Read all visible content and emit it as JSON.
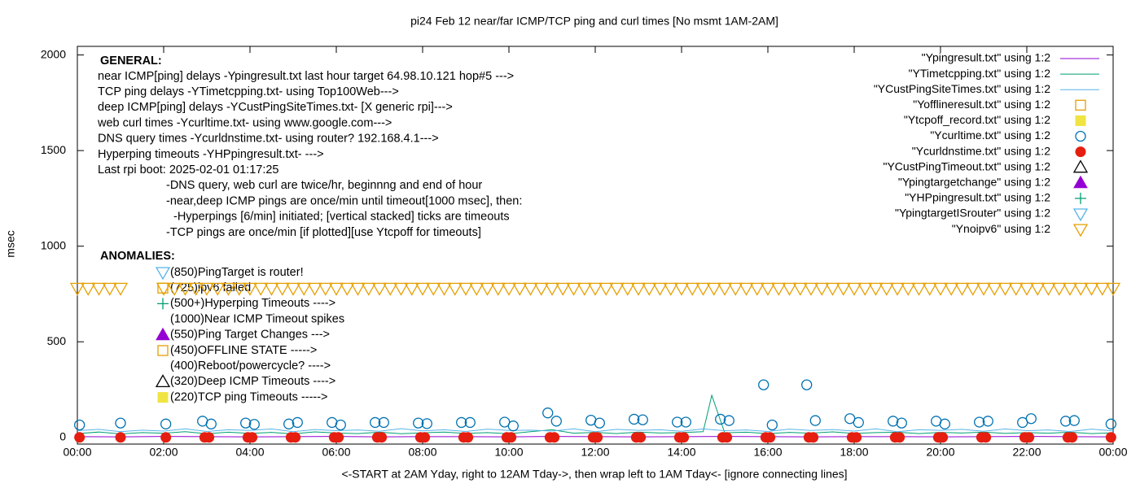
{
  "chart_data": {
    "type": "scatter",
    "title": "pi24 Feb 12  near/far ICMP/TCP ping and curl times [No msmt 1AM-2AM]",
    "ylabel": "msec",
    "xlabel": "<-START at 2AM Yday, right to 12AM Tday->, then wrap left to 1AM Tday<- [ignore connecting lines]",
    "xlim": [
      0,
      24
    ],
    "ylim": [
      -35,
      2045
    ],
    "yticks": [
      0,
      500,
      1000,
      1500,
      2000
    ],
    "xticks": [
      {
        "value": 0,
        "label": "00:00"
      },
      {
        "value": 2,
        "label": "02:00"
      },
      {
        "value": 4,
        "label": "04:00"
      },
      {
        "value": 6,
        "label": "06:00"
      },
      {
        "value": 8,
        "label": "08:00"
      },
      {
        "value": 10,
        "label": "10:00"
      },
      {
        "value": 12,
        "label": "12:00"
      },
      {
        "value": 14,
        "label": "14:00"
      },
      {
        "value": 16,
        "label": "16:00"
      },
      {
        "value": 18,
        "label": "18:00"
      },
      {
        "value": 20,
        "label": "20:00"
      },
      {
        "value": 22,
        "label": "22:00"
      },
      {
        "value": 24,
        "label": "00:00"
      }
    ],
    "legend_position": "top-right",
    "general_header": "GENERAL:",
    "general": [
      "near ICMP[ping] delays -Ypingresult.txt last hour target 64.98.10.121 hop#5 --->",
      "TCP ping delays -YTimetcpping.txt- using Top100Web--->",
      "deep ICMP[ping] delays -YCustPingSiteTimes.txt- [X generic rpi]--->",
      "web curl times -Ycurltime.txt- using www.google.com--->",
      "DNS query times -Ycurldnstime.txt- using router? 192.168.4.1--->",
      "Hyperping timeouts -YHPpingresult.txt- --->",
      "Last rpi boot: 2025-02-01 01:17:25",
      "-DNS query, web curl are twice/hr, beginnng and end of hour",
      "-near,deep ICMP pings are once/min until timeout[1000 msec], then:",
      "-Hyperpings [6/min] initiated; [vertical stacked] ticks are timeouts",
      "-TCP pings are once/min [if plotted][use Ytcpoff for timeouts]"
    ],
    "anomalies_header": "ANOMALIES:",
    "anomalies": [
      "(850)PingTarget is router!",
      "(725)ipv6 failed",
      "(500+)Hyperping Timeouts ---->",
      "(1000)Near ICMP Timeout spikes",
      "(550)Ping Target Changes --->",
      "(450)OFFLINE STATE ----->",
      "(400)Reboot/powercycle? ---->",
      "(320)Deep ICMP Timeouts ---->",
      "(220)TCP ping Timeouts ----->"
    ],
    "series": [
      {
        "name": "\"Ypingresult.txt\" using 1:2",
        "color": "#9400d3",
        "marker": "line",
        "x": [
          0,
          1,
          2,
          3,
          4,
          5,
          6,
          7,
          8,
          9,
          10,
          11,
          12,
          13,
          14,
          15,
          16,
          17,
          18,
          19,
          20,
          21,
          22,
          23,
          24
        ],
        "values": [
          4,
          3,
          5,
          4,
          3,
          4,
          5,
          3,
          4,
          4,
          3,
          5,
          4,
          3,
          4,
          5,
          4,
          3,
          4,
          4,
          3,
          4,
          5,
          4,
          3
        ]
      },
      {
        "name": "\"YTimetcpping.txt\" using 1:2",
        "color": "#009e73",
        "marker": "line",
        "x": [
          0,
          0.5,
          1,
          1.5,
          2,
          2.5,
          3,
          3.5,
          4,
          4.5,
          5,
          5.5,
          6,
          6.5,
          7,
          7.5,
          8,
          8.5,
          9,
          9.5,
          10,
          10.5,
          11,
          11.5,
          12,
          12.5,
          13,
          13.5,
          14,
          14.5,
          14.7,
          15,
          15.5,
          16,
          16.5,
          17,
          17.5,
          18,
          18.5,
          19,
          19.5,
          20,
          20.5,
          21,
          21.5,
          22,
          22.5,
          23,
          23.5,
          24
        ],
        "values": [
          20,
          28,
          18,
          25,
          22,
          30,
          19,
          27,
          21,
          26,
          18,
          29,
          23,
          20,
          27,
          19,
          24,
          28,
          21,
          25,
          19,
          30,
          40,
          22,
          26,
          20,
          28,
          23,
          25,
          30,
          220,
          24,
          27,
          20,
          26,
          22,
          29,
          21,
          25,
          27,
          20,
          26,
          23,
          28,
          21,
          25,
          22,
          27,
          20,
          24
        ]
      },
      {
        "name": "\"YCustPingSiteTimes.txt\" using 1:2",
        "color": "#56b4e9",
        "marker": "line",
        "x": [
          0,
          0.5,
          1,
          1.5,
          2,
          2.5,
          3,
          3.5,
          4,
          4.5,
          5,
          5.5,
          6,
          6.5,
          7,
          7.5,
          8,
          8.5,
          9,
          9.5,
          10,
          10.5,
          11,
          11.5,
          12,
          12.5,
          13,
          13.5,
          14,
          14.5,
          15,
          15.5,
          16,
          16.5,
          17,
          17.5,
          18,
          18.5,
          19,
          19.5,
          20,
          20.5,
          21,
          21.5,
          22,
          22.5,
          23,
          23.5,
          24
        ],
        "values": [
          35,
          42,
          30,
          38,
          33,
          45,
          31,
          40,
          36,
          44,
          30,
          41,
          35,
          39,
          32,
          46,
          34,
          40,
          31,
          43,
          36,
          38,
          33,
          45,
          30,
          42,
          37,
          40,
          32,
          44,
          35,
          39,
          31,
          43,
          36,
          41,
          33,
          45,
          30,
          40,
          37,
          42,
          32,
          44,
          35,
          39,
          31,
          43,
          34
        ]
      },
      {
        "name": "\"Yofflineresult.txt\" using 1:2",
        "color": "#e69f00",
        "marker": "open-square",
        "x": [],
        "values": []
      },
      {
        "name": "\"Ytcpoff_record.txt\" using 1:2",
        "color": "#f0e442",
        "marker": "filled-square",
        "x": [],
        "values": []
      },
      {
        "name": "\"Ycurltime.txt\" using 1:2",
        "color": "#0072b2",
        "marker": "open-circle",
        "x": [
          0.05,
          1.0,
          2.05,
          2.9,
          3.1,
          3.9,
          4.1,
          4.9,
          5.1,
          5.9,
          6.1,
          6.9,
          7.1,
          7.9,
          8.1,
          8.9,
          9.1,
          9.9,
          10.1,
          10.9,
          11.1,
          11.9,
          12.1,
          12.9,
          13.1,
          13.9,
          14.1,
          14.9,
          15.1,
          15.9,
          16.1,
          16.9,
          17.1,
          17.9,
          18.1,
          18.9,
          19.1,
          19.9,
          20.1,
          20.9,
          21.1,
          21.9,
          22.1,
          22.9,
          23.1,
          23.95
        ],
        "values": [
          65,
          75,
          70,
          85,
          70,
          75,
          68,
          70,
          78,
          78,
          65,
          78,
          78,
          75,
          72,
          78,
          78,
          80,
          60,
          128,
          85,
          90,
          75,
          95,
          92,
          80,
          80,
          95,
          88,
          275,
          65,
          275,
          88,
          98,
          78,
          85,
          75,
          85,
          70,
          80,
          85,
          78,
          98,
          85,
          88,
          70
        ]
      },
      {
        "name": "\"Ycurldnstime.txt\" using 1:2",
        "color": "#e51e10",
        "marker": "filled-circle",
        "x": [
          0.05,
          1.0,
          2.05,
          2.95,
          3.05,
          3.95,
          4.05,
          4.95,
          5.05,
          5.95,
          6.05,
          6.95,
          7.05,
          7.95,
          8.05,
          8.95,
          9.05,
          9.95,
          10.05,
          10.95,
          11.05,
          11.95,
          12.05,
          12.95,
          13.05,
          13.95,
          14.05,
          14.95,
          15.05,
          15.95,
          16.05,
          16.95,
          17.05,
          17.95,
          18.05,
          18.95,
          19.05,
          19.95,
          20.05,
          20.95,
          21.05,
          21.95,
          22.05,
          22.95,
          23.05,
          23.95
        ],
        "values": [
          0,
          0,
          0,
          0,
          0,
          0,
          0,
          0,
          0,
          0,
          0,
          0,
          0,
          0,
          0,
          0,
          0,
          0,
          0,
          0,
          0,
          0,
          0,
          0,
          0,
          0,
          0,
          0,
          0,
          0,
          0,
          0,
          0,
          0,
          0,
          0,
          0,
          0,
          0,
          0,
          0,
          0,
          0,
          0,
          0,
          0
        ]
      },
      {
        "name": "\"YCustPingTimeout.txt\" using 1:2",
        "color": "#000000",
        "marker": "open-triangle",
        "x": [],
        "values": []
      },
      {
        "name": "\"Ypingtargetchange\" using 1:2",
        "color": "#9400d3",
        "marker": "filled-triangle",
        "x": [],
        "values": []
      },
      {
        "name": "\"YHPpingresult.txt\" using 1:2",
        "color": "#009e73",
        "marker": "plus",
        "x": [],
        "values": []
      },
      {
        "name": "\"YpingtargetISrouter\" using 1:2",
        "color": "#56b4e9",
        "marker": "open-down-triangle",
        "x": [],
        "values": []
      },
      {
        "name": "\"Ynoipv6\" using 1:2",
        "color": "#e69f00",
        "marker": "open-down-triangle",
        "x": [
          0,
          0.25,
          0.5,
          0.75,
          1,
          2,
          2.25,
          2.5,
          2.75,
          3,
          3.25,
          3.5,
          3.75,
          4,
          4.25,
          4.5,
          4.75,
          5,
          5.25,
          5.5,
          5.75,
          6,
          6.25,
          6.5,
          6.75,
          7,
          7.25,
          7.5,
          7.75,
          8,
          8.25,
          8.5,
          8.75,
          9,
          9.25,
          9.5,
          9.75,
          10,
          10.25,
          10.5,
          10.75,
          11,
          11.25,
          11.5,
          11.75,
          12,
          12.25,
          12.5,
          12.75,
          13,
          13.25,
          13.5,
          13.75,
          14,
          14.25,
          14.5,
          14.75,
          15,
          15.25,
          15.5,
          15.75,
          16,
          16.25,
          16.5,
          16.75,
          17,
          17.25,
          17.5,
          17.75,
          18,
          18.25,
          18.5,
          18.75,
          19,
          19.25,
          19.5,
          19.75,
          20,
          20.25,
          20.5,
          20.75,
          21,
          21.25,
          21.5,
          21.75,
          22,
          22.25,
          22.5,
          22.75,
          23,
          23.25,
          23.5,
          23.75,
          24
        ],
        "values": [
          780,
          780,
          780,
          780,
          780,
          780,
          780,
          780,
          780,
          780,
          780,
          780,
          780,
          780,
          780,
          780,
          780,
          780,
          780,
          780,
          780,
          780,
          780,
          780,
          780,
          780,
          780,
          780,
          780,
          780,
          780,
          780,
          780,
          780,
          780,
          780,
          780,
          780,
          780,
          780,
          780,
          780,
          780,
          780,
          780,
          780,
          780,
          780,
          780,
          780,
          780,
          780,
          780,
          780,
          780,
          780,
          780,
          780,
          780,
          780,
          780,
          780,
          780,
          780,
          780,
          780,
          780,
          780,
          780,
          780,
          780,
          780,
          780,
          780,
          780,
          780,
          780,
          780,
          780,
          780,
          780,
          780,
          780,
          780,
          780,
          780,
          780,
          780,
          780,
          780,
          780,
          780,
          780,
          780
        ]
      }
    ]
  }
}
